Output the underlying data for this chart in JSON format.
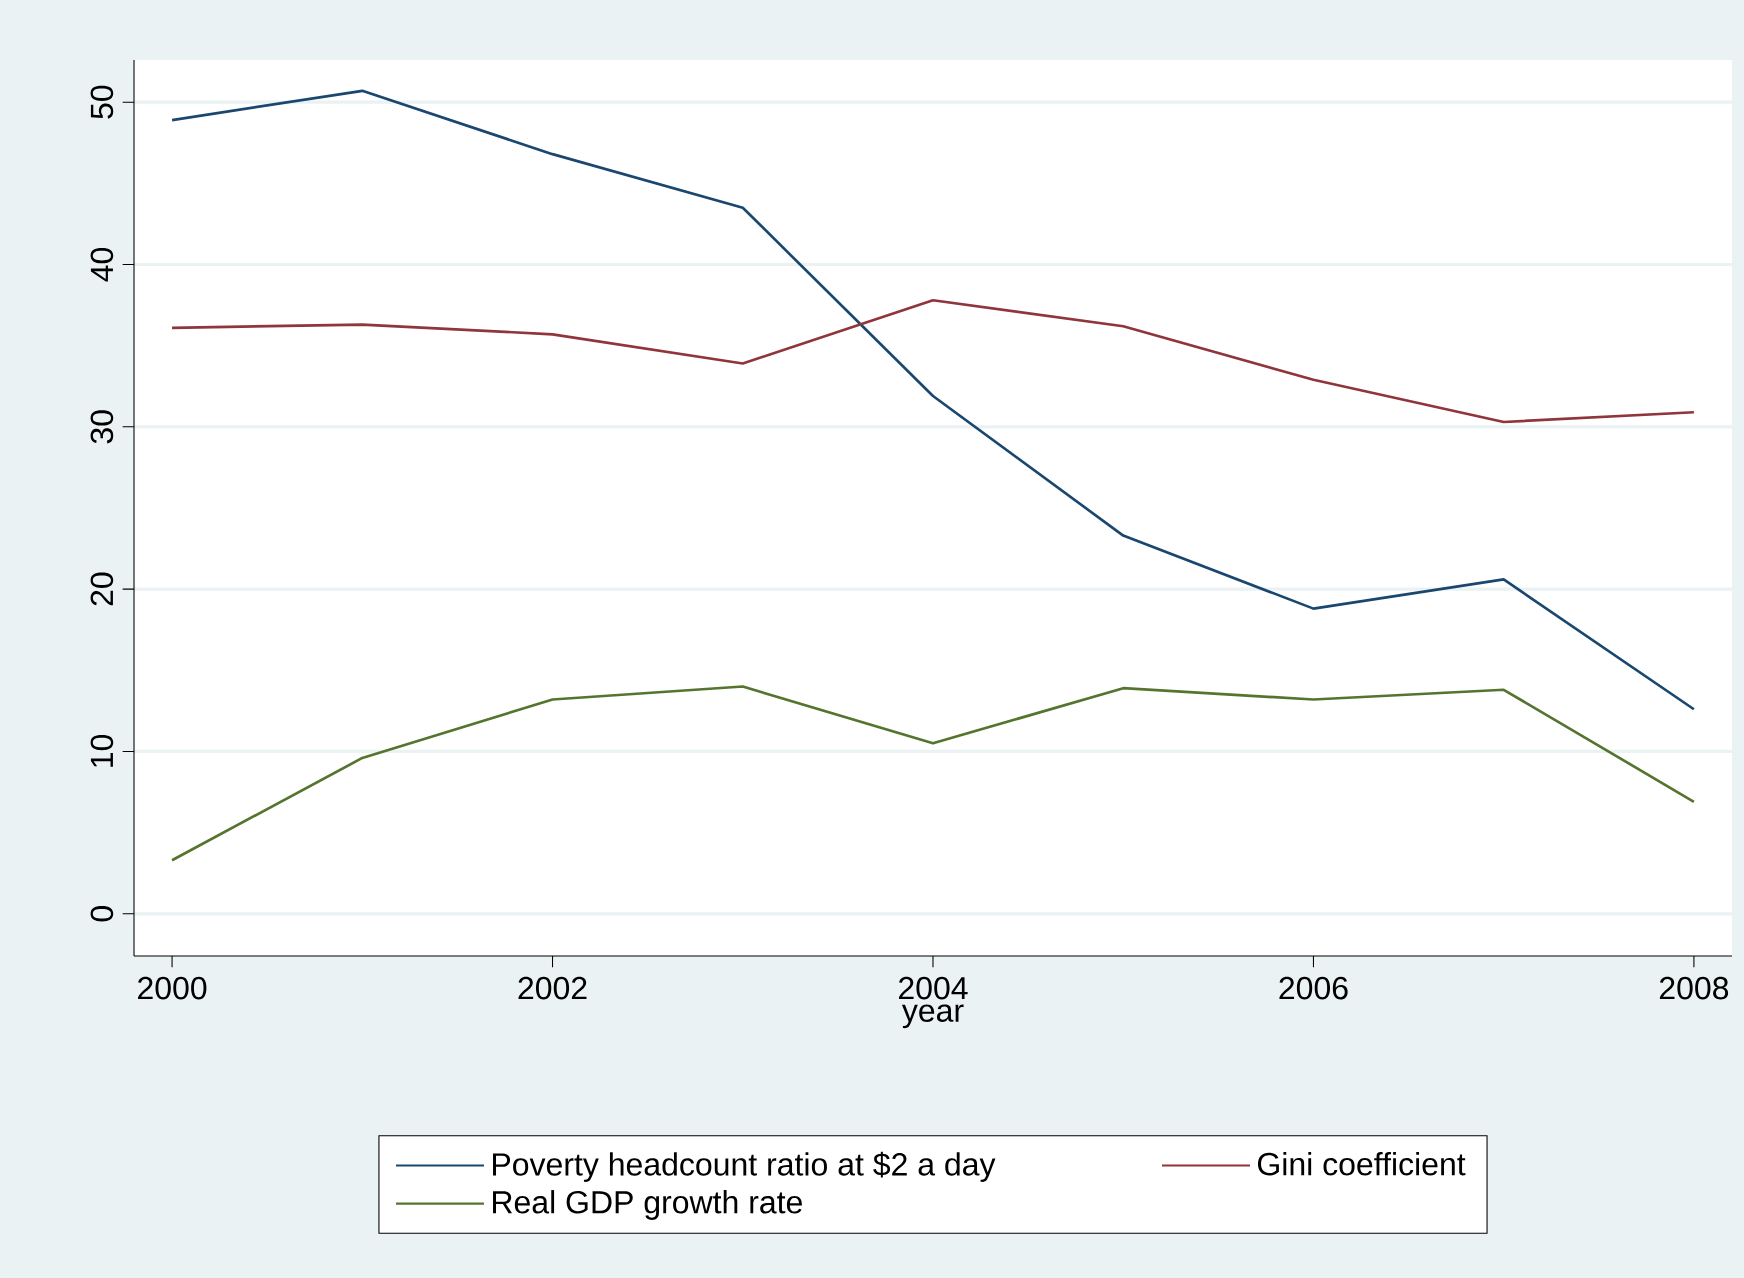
{
  "chart_data": {
    "type": "line",
    "xlabel": "year",
    "x": [
      2000,
      2001,
      2002,
      2003,
      2004,
      2005,
      2006,
      2007,
      2008
    ],
    "series": [
      {
        "name": "Poverty headcount ratio at $2 a day",
        "color": "#1a476f",
        "values": [
          48.9,
          50.7,
          46.8,
          43.5,
          31.9,
          23.3,
          18.8,
          20.6,
          12.6
        ]
      },
      {
        "name": "Gini coefficient",
        "color": "#90353b",
        "values": [
          36.1,
          36.3,
          35.7,
          33.9,
          37.8,
          36.2,
          32.9,
          30.3,
          30.9
        ]
      },
      {
        "name": "Real GDP growth rate",
        "color": "#55752f",
        "values": [
          3.3,
          9.6,
          13.2,
          14.0,
          10.5,
          13.9,
          13.2,
          13.8,
          6.9
        ]
      }
    ],
    "xlim": [
      1999.8,
      2008.2
    ],
    "ylim": [
      -2.6,
      52.6
    ],
    "xticks": [
      2000,
      2002,
      2004,
      2006,
      2008
    ],
    "yticks": [
      0,
      10,
      20,
      30,
      40,
      50
    ],
    "grid": "y",
    "legend": "bottom",
    "marker": "none",
    "line_style": "solid"
  }
}
